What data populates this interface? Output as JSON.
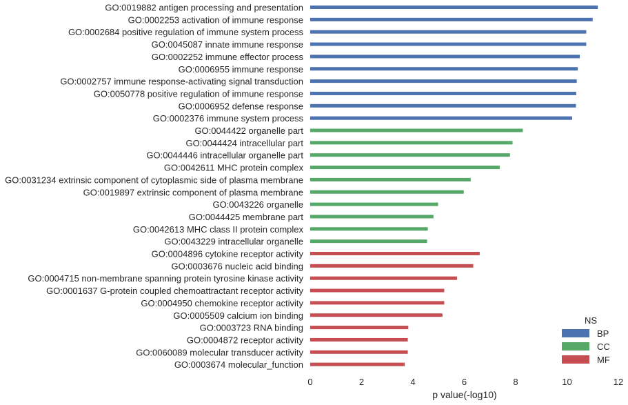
{
  "chart_data": {
    "type": "bar",
    "orientation": "horizontal",
    "xlabel": "p value(-log10)",
    "xlim": [
      0,
      12
    ],
    "xticks": [
      "0",
      "2",
      "4",
      "6",
      "8",
      "10",
      "12"
    ],
    "grid": false,
    "legend": {
      "title": "NS",
      "placement": "bottom-right",
      "entries": [
        {
          "name": "BP",
          "color": "#4c72b0"
        },
        {
          "name": "CC",
          "color": "#55a868"
        },
        {
          "name": "MF",
          "color": "#c44e52"
        }
      ]
    },
    "bars": [
      {
        "label": "GO:0019882 antigen processing and presentation",
        "value": 11.2,
        "ns": "BP"
      },
      {
        "label": "GO:0002253 activation of immune response",
        "value": 11.0,
        "ns": "BP"
      },
      {
        "label": "GO:0002684 positive regulation of immune system process",
        "value": 10.75,
        "ns": "BP"
      },
      {
        "label": "GO:0045087 innate immune response",
        "value": 10.75,
        "ns": "BP"
      },
      {
        "label": "GO:0002252 immune effector process",
        "value": 10.5,
        "ns": "BP"
      },
      {
        "label": "GO:0006955 immune response",
        "value": 10.42,
        "ns": "BP"
      },
      {
        "label": "GO:0002757 immune response-activating signal transduction",
        "value": 10.38,
        "ns": "BP"
      },
      {
        "label": "GO:0050778 positive regulation of immune response",
        "value": 10.36,
        "ns": "BP"
      },
      {
        "label": "GO:0006952 defense response",
        "value": 10.35,
        "ns": "BP"
      },
      {
        "label": "GO:0002376 immune system process",
        "value": 10.2,
        "ns": "BP"
      },
      {
        "label": "GO:0044422 organelle part",
        "value": 8.28,
        "ns": "CC"
      },
      {
        "label": "GO:0044424 intracellular part",
        "value": 7.88,
        "ns": "CC"
      },
      {
        "label": "GO:0044446 intracellular organelle part",
        "value": 7.78,
        "ns": "CC"
      },
      {
        "label": "GO:0042611 MHC protein complex",
        "value": 7.38,
        "ns": "CC"
      },
      {
        "label": "GO:0031234 extrinsic component of cytoplasmic side of plasma membrane",
        "value": 6.25,
        "ns": "CC"
      },
      {
        "label": "GO:0019897 extrinsic component of plasma membrane",
        "value": 5.98,
        "ns": "CC"
      },
      {
        "label": "GO:0043226 organelle",
        "value": 4.98,
        "ns": "CC"
      },
      {
        "label": "GO:0044425 membrane part",
        "value": 4.8,
        "ns": "CC"
      },
      {
        "label": "GO:0042613 MHC class II protein complex",
        "value": 4.58,
        "ns": "CC"
      },
      {
        "label": "GO:0043229 intracellular organelle",
        "value": 4.55,
        "ns": "CC"
      },
      {
        "label": "GO:0004896 cytokine receptor activity",
        "value": 6.6,
        "ns": "MF"
      },
      {
        "label": "GO:0003676 nucleic acid binding",
        "value": 6.35,
        "ns": "MF"
      },
      {
        "label": "GO:0004715 non-membrane spanning protein tyrosine kinase activity",
        "value": 5.72,
        "ns": "MF"
      },
      {
        "label": "GO:0001637 G-protein coupled chemoattractant receptor activity",
        "value": 5.22,
        "ns": "MF"
      },
      {
        "label": "GO:0004950 chemokine receptor activity",
        "value": 5.22,
        "ns": "MF"
      },
      {
        "label": "GO:0005509 calcium ion binding",
        "value": 5.15,
        "ns": "MF"
      },
      {
        "label": "GO:0003723 RNA binding",
        "value": 3.82,
        "ns": "MF"
      },
      {
        "label": "GO:0004872 receptor activity",
        "value": 3.8,
        "ns": "MF"
      },
      {
        "label": "GO:0060089 molecular transducer activity",
        "value": 3.8,
        "ns": "MF"
      },
      {
        "label": "GO:0003674 molecular_function",
        "value": 3.68,
        "ns": "MF"
      }
    ]
  }
}
